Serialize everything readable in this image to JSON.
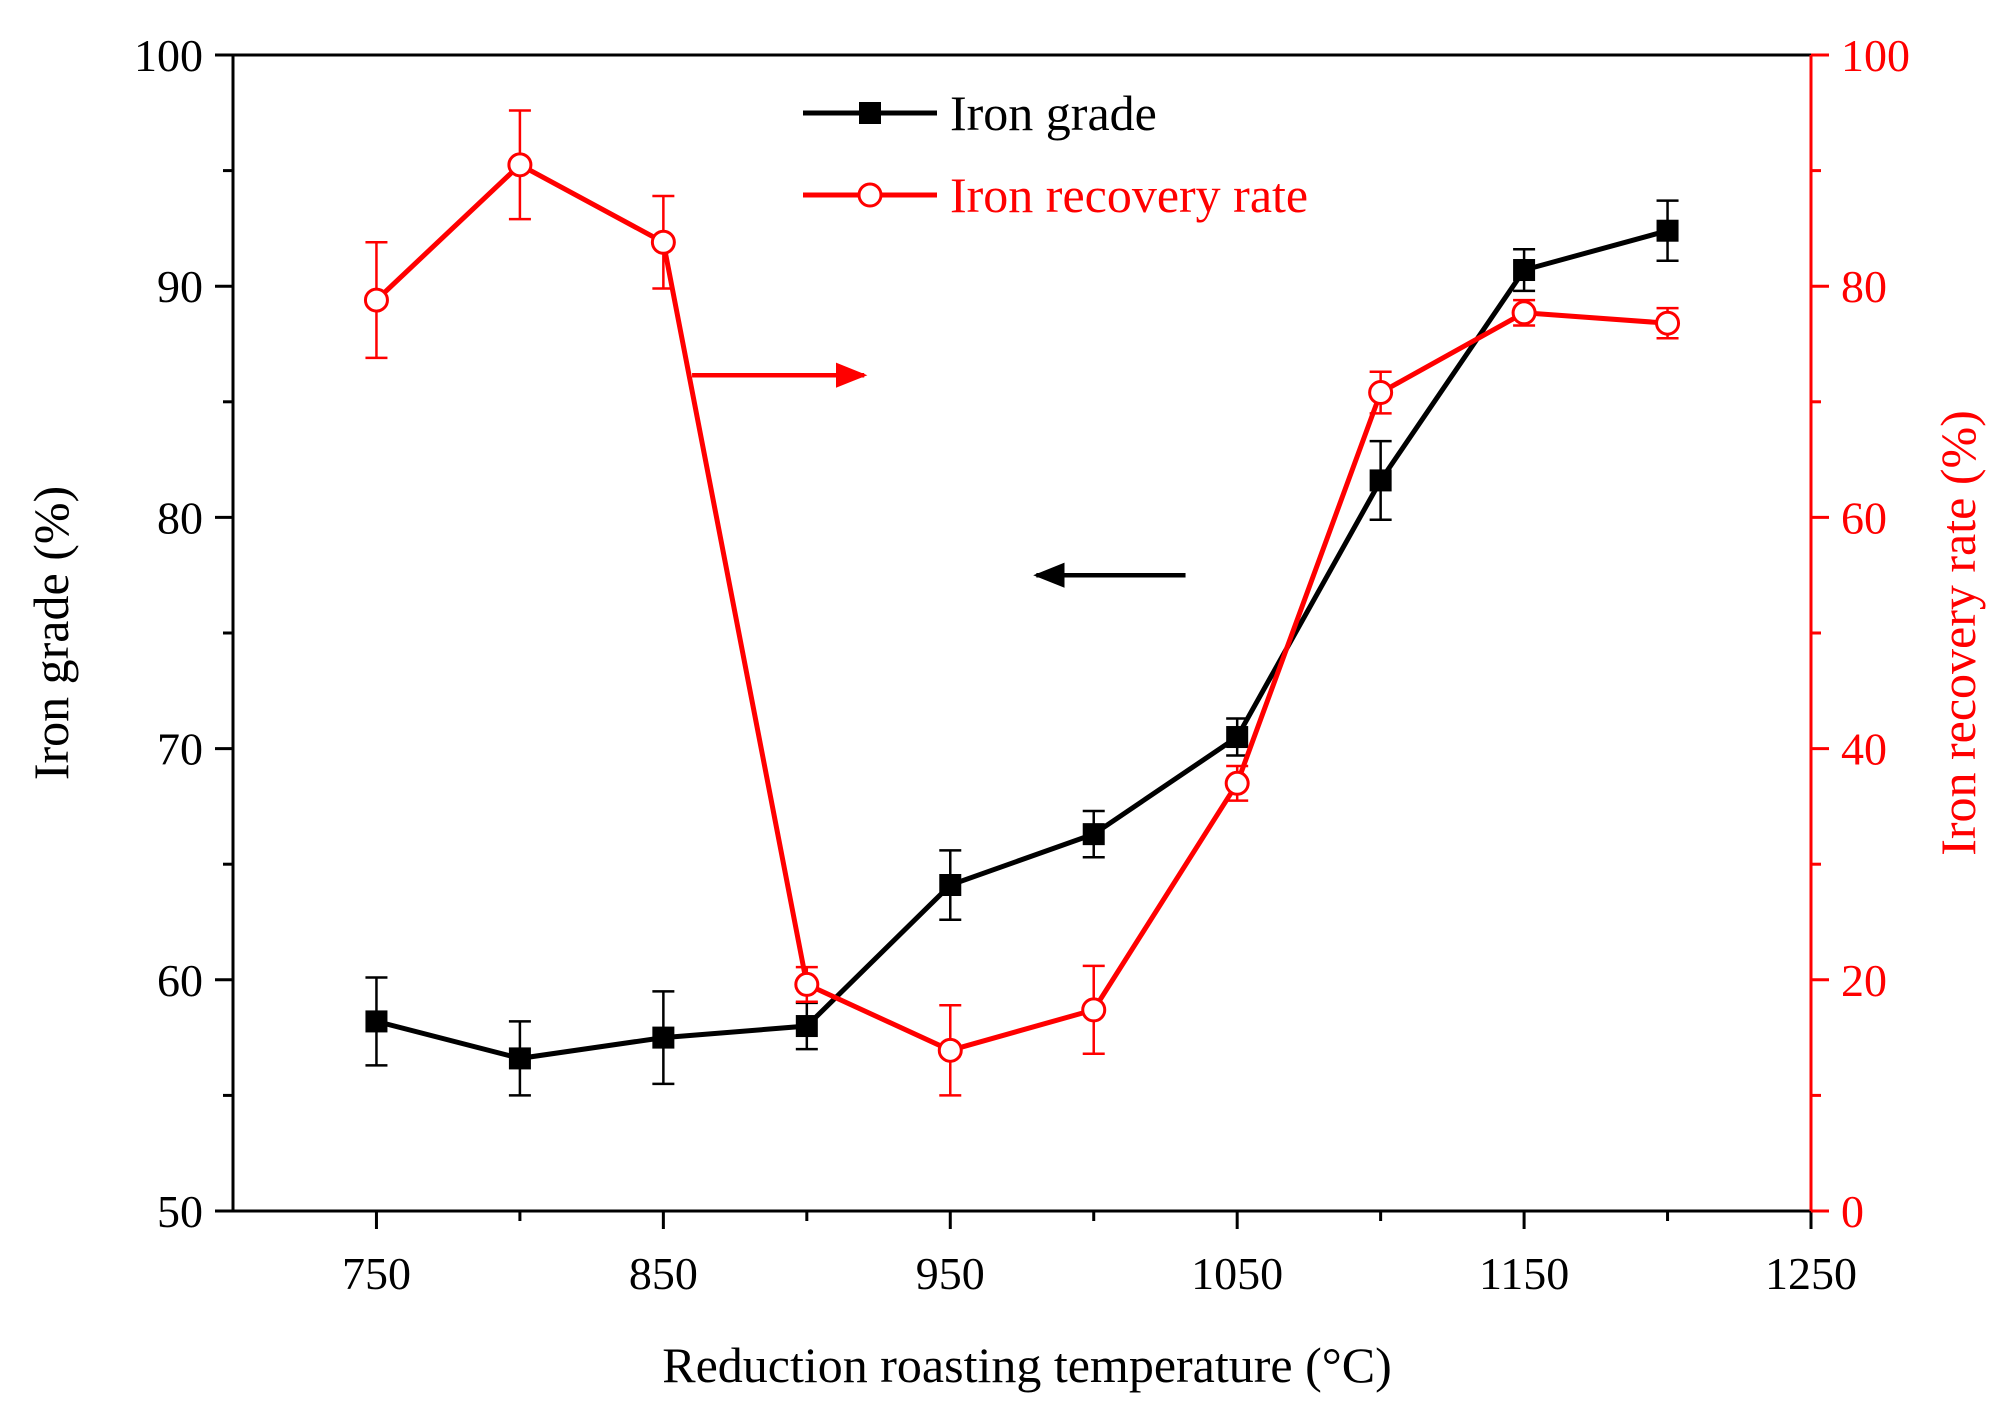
{
  "chart_data": {
    "type": "line",
    "title": "",
    "xlabel": "Reduction roasting temperature (°C)",
    "ylabel_left": "Iron grade (%)",
    "ylabel_right": "Iron recovery rate (%)",
    "xlim": [
      700,
      1250
    ],
    "ylim_left": [
      50,
      100
    ],
    "ylim_right": [
      0,
      100
    ],
    "x_ticks": [
      750,
      850,
      950,
      1050,
      1150,
      1250
    ],
    "x_tick_labels": [
      "750",
      "850",
      "950",
      "1050",
      "1150",
      "1250"
    ],
    "y_left_ticks": [
      50,
      60,
      70,
      80,
      90,
      100
    ],
    "y_left_tick_labels": [
      "50",
      "60",
      "70",
      "80",
      "90",
      "100"
    ],
    "y_right_ticks": [
      0,
      20,
      40,
      60,
      80,
      100
    ],
    "y_right_tick_labels": [
      "0",
      "20",
      "40",
      "60",
      "80",
      "100"
    ],
    "grid": false,
    "legend_position": "top-center",
    "x": [
      750,
      800,
      850,
      900,
      950,
      1000,
      1050,
      1100,
      1150,
      1200
    ],
    "series": [
      {
        "name": "Iron grade",
        "axis": "left",
        "color": "#000000",
        "marker": "filled-square",
        "values": [
          58.2,
          56.6,
          57.5,
          58.0,
          64.1,
          66.3,
          70.5,
          81.6,
          90.7,
          92.4
        ],
        "errors": [
          1.9,
          1.6,
          2.0,
          1.0,
          1.5,
          1.0,
          0.8,
          1.7,
          0.9,
          1.3
        ]
      },
      {
        "name": "Iron recovery rate",
        "axis": "right",
        "color": "#ff0000",
        "marker": "open-circle",
        "values": [
          78.8,
          90.5,
          83.8,
          19.6,
          13.9,
          17.4,
          37.0,
          70.8,
          77.7,
          76.8
        ],
        "errors": [
          5.0,
          4.7,
          4.0,
          1.5,
          3.9,
          3.8,
          1.5,
          1.8,
          1.1,
          1.3
        ]
      }
    ],
    "annotations": [
      {
        "type": "arrow",
        "direction": "right",
        "points_to_axis": "right",
        "color": "#ff0000",
        "y_right": 72.3,
        "x_from": 860,
        "x_to": 920
      },
      {
        "type": "arrow",
        "direction": "left",
        "points_to_axis": "left",
        "color": "#000000",
        "y_left": 77.5,
        "x_from": 1032,
        "x_to": 980
      }
    ]
  }
}
